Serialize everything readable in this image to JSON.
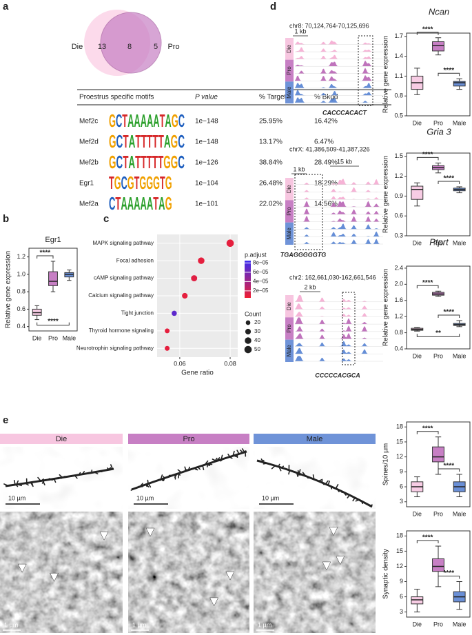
{
  "panel_labels": [
    "a",
    "b",
    "c",
    "d",
    "e"
  ],
  "venn": {
    "sets": [
      "Die",
      "Pro"
    ],
    "counts": [
      13,
      8,
      5
    ]
  },
  "motif_table": {
    "header": [
      "Proestrus specific motifs",
      "P value",
      "% Targets",
      "% Bkgd"
    ],
    "rows": [
      [
        "Mef2c",
        "GCTAAAAATAGC",
        "1e−148",
        "25.95%",
        "16.42%"
      ],
      [
        "Mef2d",
        "GCTATTTTTAGC",
        "1e−148",
        "13.17%",
        "6.47%"
      ],
      [
        "Mef2b",
        "GCTATTTTTGGC",
        "1e−126",
        "38.84%",
        "28.49%"
      ],
      [
        "Egr1",
        "TGCGTGGGTG",
        "1e−104",
        "26.48%",
        "18.29%"
      ],
      [
        "Mef2a",
        "CTAAAAATAG",
        "1e−101",
        "22.02%",
        "14.56%"
      ]
    ]
  },
  "tracks": [
    {
      "gene": "Ncan",
      "coords": "chr8: 70,124,764-70,125,696",
      "scales": [
        "1 kb"
      ],
      "motif": "CACCCACACT"
    },
    {
      "gene": "Gria 3",
      "coords": "chrX: 41,386,509-41,387,326",
      "scales": [
        "15 kb",
        "1 kb"
      ],
      "motif": "TGAGGGGGTG"
    },
    {
      "gene": "Ptprt",
      "coords": "chr2: 162,661,030-162,661,546",
      "scales": [
        "2 kb"
      ],
      "motif": "CCCCCACGCA"
    }
  ],
  "track_rows": [
    "Die",
    "Pro",
    "Male"
  ],
  "panel_e": {
    "conditions": [
      "Die",
      "Pro",
      "Male"
    ],
    "scale_light": "10 µm",
    "scale_em": "1 µm"
  },
  "chart_data": [
    {
      "type": "box",
      "title": "Egr1",
      "ylabel": "Relative gene expression",
      "categories": [
        "Die",
        "Pro",
        "Male"
      ],
      "colors": [
        "#f7cce4",
        "#c77fc4",
        "#6a8fd6"
      ],
      "boxes": [
        {
          "min": 0.48,
          "q1": 0.53,
          "median": 0.56,
          "q3": 0.6,
          "max": 0.64
        },
        {
          "min": 0.8,
          "q1": 0.87,
          "median": 0.92,
          "q3": 1.03,
          "max": 1.15
        },
        {
          "min": 0.93,
          "q1": 0.97,
          "median": 1.0,
          "q3": 1.02,
          "max": 1.05
        }
      ],
      "ylim": [
        0.35,
        1.3
      ],
      "yticks": [
        0.4,
        0.6,
        0.8,
        {
          "value": 1,
          "label": "1.0"
        },
        1.2
      ],
      "annotations": [
        {
          "text": "****",
          "between": [
            "Die",
            "Pro"
          ],
          "position": "above"
        },
        {
          "text": "****",
          "between": [
            "Die",
            "Male"
          ],
          "position": "below"
        }
      ]
    },
    {
      "type": "dot",
      "xlabel": "Gene ratio",
      "categories": [
        "MAPK signaling pathway",
        "Focal adhesion",
        "cAMP signaling pathway",
        "Calcium signaling pathway",
        "Tight junction",
        "Thyroid hormone signaling",
        "Neurotrophin signaling pathway"
      ],
      "values": [
        0.08,
        0.0685,
        0.0657,
        0.062,
        0.0578,
        0.055,
        0.055
      ],
      "counts": [
        50,
        40,
        35,
        30,
        25,
        22,
        22
      ],
      "padj": [
        1e-05,
        1e-05,
        1.2e-05,
        1e-05,
        7e-05,
        1e-05,
        1e-05
      ],
      "xlim": [
        0.051,
        0.083
      ],
      "xticks": [
        0.06,
        0.08
      ],
      "color_legend": {
        "title": "p.adjust",
        "lim": [
          5e-06,
          8.5e-05
        ],
        "low_color": "#f01e32",
        "high_color": "#3b2cf0",
        "ticks": [
          {
            "value": 8e-05,
            "label": "8e−05"
          },
          {
            "value": 6e-05,
            "label": "6e−05"
          },
          {
            "value": 4e-05,
            "label": "4e−05"
          },
          {
            "value": 2e-05,
            "label": "2e−05"
          }
        ]
      },
      "size_legend": {
        "title": "Count",
        "values": [
          20,
          30,
          40,
          50
        ]
      }
    },
    {
      "type": "box",
      "ylabel": "Relative gene expression",
      "categories": [
        "Die",
        "Pro",
        "Male"
      ],
      "colors": [
        "#f7cce4",
        "#c77fc4",
        "#6a8fd6"
      ],
      "boxes": [
        {
          "min": 0.82,
          "q1": 0.9,
          "median": 1.0,
          "q3": 1.1,
          "max": 1.22
        },
        {
          "min": 1.42,
          "q1": 1.48,
          "median": 1.56,
          "q3": 1.62,
          "max": 1.68
        },
        {
          "min": 0.9,
          "q1": 0.95,
          "median": 1.0,
          "q3": 1.02,
          "max": 1.06
        }
      ],
      "ylim": [
        0.5,
        1.75
      ],
      "yticks": [
        0.5,
        0.8,
        1.1,
        1.4,
        1.7
      ],
      "annotations": [
        {
          "text": "****",
          "between": [
            "Die",
            "Pro"
          ],
          "position": "above"
        },
        {
          "text": "****",
          "between": [
            "Pro",
            "Male"
          ],
          "position": "above"
        }
      ]
    },
    {
      "type": "box",
      "ylabel": "Relative gene expression",
      "categories": [
        "Die",
        "Pro",
        "Male"
      ],
      "colors": [
        "#f7cce4",
        "#c77fc4",
        "#6a8fd6"
      ],
      "boxes": [
        {
          "min": 0.75,
          "q1": 0.85,
          "median": 1.0,
          "q3": 1.05,
          "max": 1.1
        },
        {
          "min": 1.25,
          "q1": 1.3,
          "median": 1.33,
          "q3": 1.36,
          "max": 1.4
        },
        {
          "min": 0.95,
          "q1": 0.98,
          "median": 1.0,
          "q3": 1.02,
          "max": 1.04
        }
      ],
      "ylim": [
        0.3,
        1.55
      ],
      "yticks": [
        0.3,
        0.6,
        0.9,
        1.2,
        1.5
      ],
      "annotations": [
        {
          "text": "****",
          "between": [
            "Die",
            "Pro"
          ],
          "position": "above"
        },
        {
          "text": "****",
          "between": [
            "Pro",
            "Male"
          ],
          "position": "above"
        }
      ]
    },
    {
      "type": "box",
      "ylabel": "Relative gene expression",
      "categories": [
        "Die",
        "Pro",
        "Male"
      ],
      "colors": [
        "#f7cce4",
        "#c77fc4",
        "#6a8fd6"
      ],
      "boxes": [
        {
          "min": 0.84,
          "q1": 0.86,
          "median": 0.88,
          "q3": 0.91,
          "max": 0.93
        },
        {
          "min": 1.7,
          "q1": 1.73,
          "median": 1.76,
          "q3": 1.8,
          "max": 1.83
        },
        {
          "min": 0.95,
          "q1": 0.98,
          "median": 1.0,
          "q3": 1.03,
          "max": 1.1
        }
      ],
      "ylim": [
        0.4,
        2.45
      ],
      "yticks": [
        0.4,
        0.8,
        1.2,
        1.6,
        {
          "value": 2,
          "label": "2.0"
        },
        2.4
      ],
      "annotations": [
        {
          "text": "****",
          "between": [
            "Die",
            "Pro"
          ],
          "position": "above"
        },
        {
          "text": "****",
          "between": [
            "Pro",
            "Male"
          ],
          "position": "above"
        },
        {
          "text": "**",
          "between": [
            "Die",
            "Male"
          ],
          "position": "below"
        }
      ]
    },
    {
      "type": "box",
      "ylabel": "Spines/10 µm",
      "categories": [
        "Die",
        "Pro",
        "Male"
      ],
      "colors": [
        "#f7cce4",
        "#c77fc4",
        "#6a8fd6"
      ],
      "boxes": [
        {
          "min": 4,
          "q1": 5,
          "median": 6,
          "q3": 7,
          "max": 8
        },
        {
          "min": 8.5,
          "q1": 11,
          "median": 12,
          "q3": 14,
          "max": 16
        },
        {
          "min": 4,
          "q1": 5,
          "median": 6,
          "q3": 7,
          "max": 8.5
        }
      ],
      "ylim": [
        2,
        19
      ],
      "yticks": [
        3,
        6,
        9,
        12,
        15,
        18
      ],
      "annotations": [
        {
          "text": "****",
          "between": [
            "Die",
            "Pro"
          ],
          "position": "above"
        },
        {
          "text": "****",
          "between": [
            "Pro",
            "Male"
          ],
          "position": "above"
        }
      ]
    },
    {
      "type": "box",
      "ylabel": "Synaptic density",
      "categories": [
        "Die",
        "Pro",
        "Male"
      ],
      "colors": [
        "#f7cce4",
        "#c77fc4",
        "#6a8fd6"
      ],
      "boxes": [
        {
          "min": 3,
          "q1": 4.6,
          "median": 5.4,
          "q3": 6,
          "max": 7.5
        },
        {
          "min": 8,
          "q1": 11,
          "median": 12,
          "q3": 13.5,
          "max": 16
        },
        {
          "min": 3.5,
          "q1": 5,
          "median": 6,
          "q3": 7,
          "max": 9
        }
      ],
      "ylim": [
        2,
        19
      ],
      "yticks": [
        3,
        6,
        9,
        12,
        15,
        18
      ],
      "annotations": [
        {
          "text": "****",
          "between": [
            "Die",
            "Pro"
          ],
          "position": "above"
        },
        {
          "text": "****",
          "between": [
            "Pro",
            "Male"
          ],
          "position": "above"
        }
      ]
    }
  ]
}
